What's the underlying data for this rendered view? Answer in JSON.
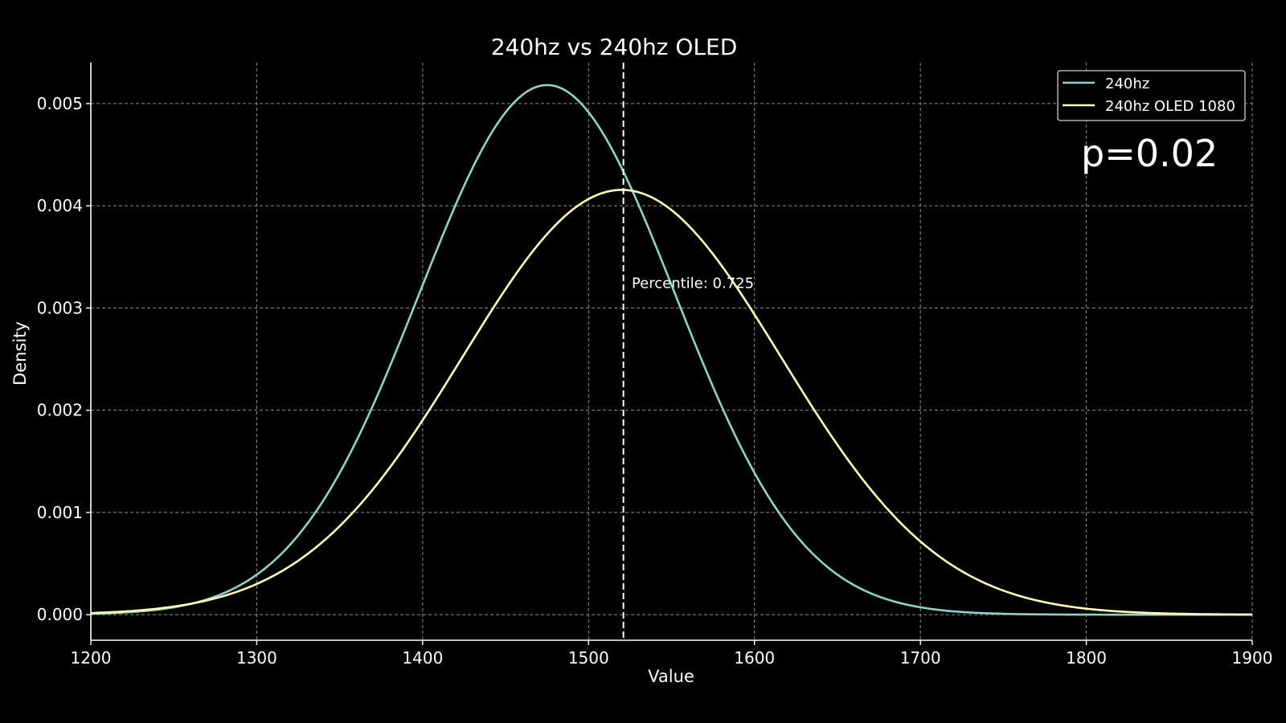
{
  "chart_data": {
    "type": "line",
    "title": "240hz vs 240hz OLED",
    "xlabel": "Value",
    "ylabel": "Density",
    "xlim": [
      1200,
      1900
    ],
    "ylim": [
      -0.00025,
      0.0054
    ],
    "xticks": [
      1200,
      1300,
      1400,
      1500,
      1600,
      1700,
      1800,
      1900
    ],
    "xtick_labels": [
      "1200",
      "1300",
      "1400",
      "1500",
      "1600",
      "1700",
      "1800",
      "1900"
    ],
    "yticks": [
      0.0,
      0.001,
      0.002,
      0.003,
      0.004,
      0.005
    ],
    "ytick_labels": [
      "0.000",
      "0.001",
      "0.002",
      "0.003",
      "0.004",
      "0.005"
    ],
    "grid": true,
    "legend_position": "top-right",
    "series": [
      {
        "name": "240hz",
        "color": "#8dd3c7",
        "distribution": "normal",
        "mean": 1475,
        "sd": 77
      },
      {
        "name": "240hz OLED 1080",
        "color": "#ffffb3",
        "distribution": "normal",
        "mean": 1520,
        "sd": 96
      }
    ],
    "vline": {
      "x": 1521,
      "color": "#ffffff",
      "style": "dashed"
    },
    "annotations": [
      {
        "text": "Percentile: 0.725",
        "x": 1526,
        "y": 0.00315
      }
    ],
    "stat_text": "p=0.02"
  }
}
